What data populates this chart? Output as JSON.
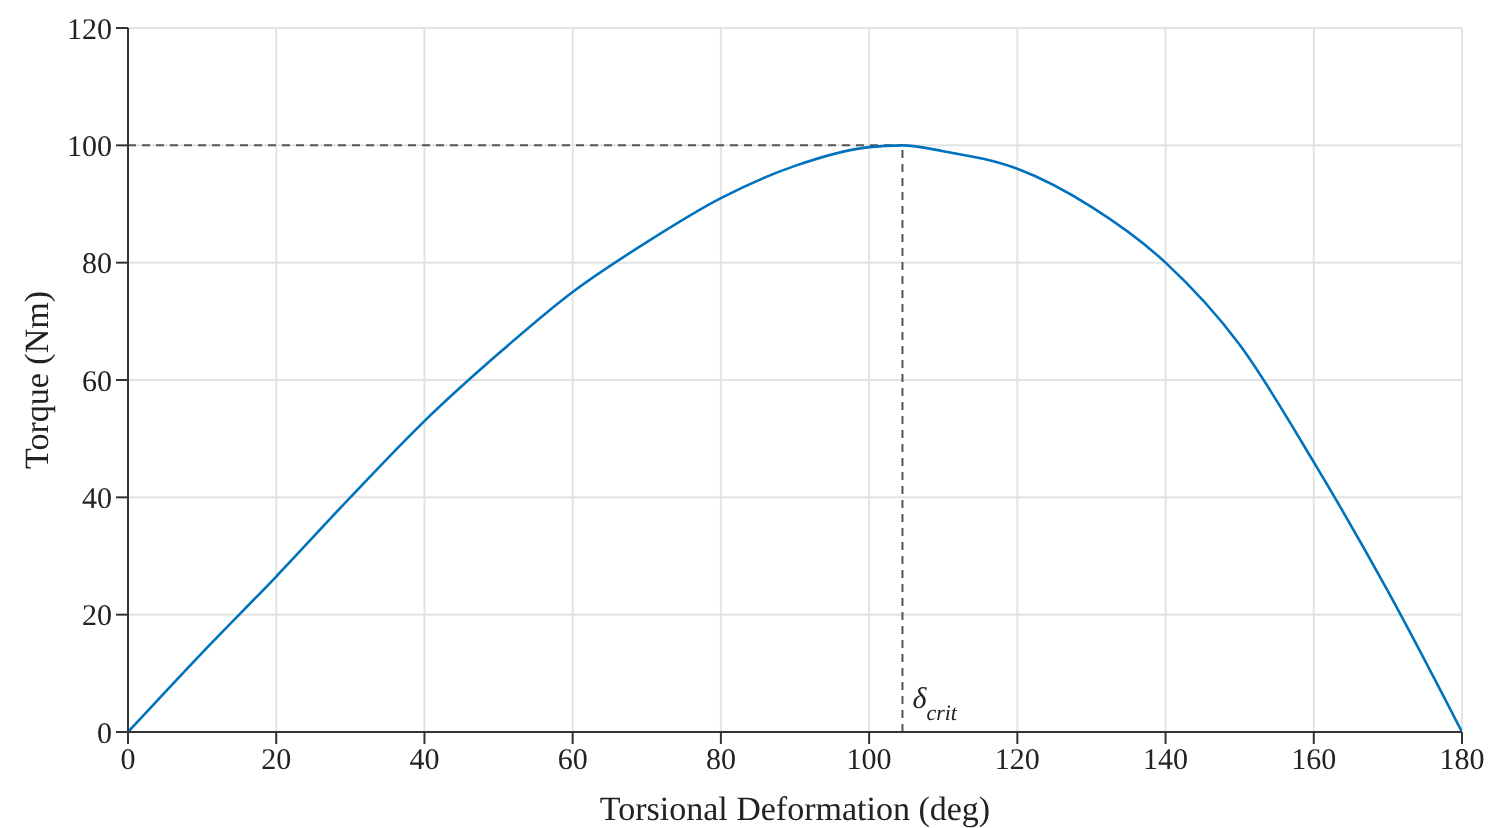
{
  "chart_data": {
    "type": "line",
    "xlabel": "Torsional Deformation (deg)",
    "ylabel": "Torque (Nm)",
    "x": [
      0,
      10,
      20,
      30,
      40,
      50,
      60,
      70,
      80,
      90,
      100,
      104.5,
      110,
      120,
      130,
      140,
      150,
      160,
      170,
      180
    ],
    "series": [
      {
        "color": "#0072bd",
        "values": [
          0,
          13.5,
          26.5,
          40,
          53,
          64.5,
          75,
          83.5,
          91,
          96.5,
          99.7,
          100,
          99,
          96,
          89.5,
          80,
          66,
          46,
          24,
          0
        ]
      }
    ],
    "xlim": [
      0,
      180
    ],
    "xticks": [
      0,
      20,
      40,
      60,
      80,
      100,
      120,
      140,
      160,
      180
    ],
    "ylim": [
      0,
      120
    ],
    "yticks": [
      0,
      20,
      40,
      60,
      80,
      100,
      120
    ],
    "grid": true,
    "marker": "none",
    "line_style": "solid",
    "ref_lines": [
      {
        "axis": "y",
        "value": 100,
        "color": "#555555",
        "line_style": "dashed"
      },
      {
        "axis": "x",
        "value": 104.5,
        "label": "δ$_{crit}$",
        "color": "#555555",
        "line_style": "dashed"
      }
    ]
  }
}
